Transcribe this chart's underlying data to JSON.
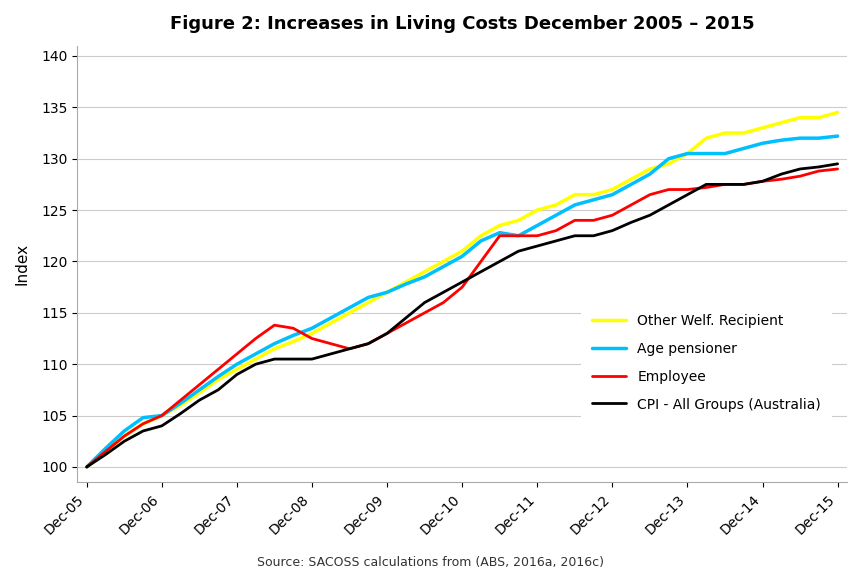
{
  "title": "Figure 2: Increases in Living Costs December 2005 – 2015",
  "ylabel": "Index",
  "source_text": "Source: SACOSS calculations from (ABS, 2016a, 2016c)",
  "x_labels": [
    "Dec-05",
    "Dec-06",
    "Dec-07",
    "Dec-08",
    "Dec-09",
    "Dec-10",
    "Dec-11",
    "Dec-12",
    "Dec-13",
    "Dec-14",
    "Dec-15"
  ],
  "x_tick_positions": [
    0,
    4,
    8,
    12,
    16,
    20,
    24,
    28,
    32,
    36,
    40
  ],
  "ylim": [
    98.5,
    141
  ],
  "yticks": [
    100,
    105,
    110,
    115,
    120,
    125,
    130,
    135,
    140
  ],
  "series": {
    "Other Welf. Recipient": {
      "color": "#FFFF00",
      "linewidth": 2.5,
      "values": [
        100.0,
        101.5,
        103.0,
        104.2,
        105.0,
        106.0,
        107.2,
        108.5,
        109.5,
        110.5,
        111.5,
        112.2,
        113.0,
        114.0,
        115.0,
        116.0,
        117.0,
        118.0,
        119.0,
        120.0,
        121.0,
        122.5,
        123.5,
        124.0,
        125.0,
        125.5,
        126.5,
        126.5,
        127.0,
        128.0,
        129.0,
        129.5,
        130.5,
        132.0,
        132.5,
        132.5,
        133.0,
        133.5,
        134.0,
        134.0,
        134.5
      ]
    },
    "Age pensioner": {
      "color": "#00BFFF",
      "linewidth": 2.5,
      "values": [
        100.0,
        101.8,
        103.5,
        104.8,
        105.0,
        106.2,
        107.5,
        108.8,
        110.0,
        111.0,
        112.0,
        112.8,
        113.5,
        114.5,
        115.5,
        116.5,
        117.0,
        117.8,
        118.5,
        119.5,
        120.5,
        122.0,
        122.8,
        122.5,
        123.5,
        124.5,
        125.5,
        126.0,
        126.5,
        127.5,
        128.5,
        130.0,
        130.5,
        130.5,
        130.5,
        131.0,
        131.5,
        131.8,
        132.0,
        132.0,
        132.2
      ]
    },
    "Employee": {
      "color": "#FF0000",
      "linewidth": 2.0,
      "values": [
        100.0,
        101.5,
        103.0,
        104.2,
        105.0,
        106.5,
        108.0,
        109.5,
        111.0,
        112.5,
        113.8,
        113.5,
        112.5,
        112.0,
        111.5,
        112.0,
        113.0,
        114.0,
        115.0,
        116.0,
        117.5,
        120.0,
        122.5,
        122.5,
        122.5,
        123.0,
        124.0,
        124.0,
        124.5,
        125.5,
        126.5,
        127.0,
        127.0,
        127.2,
        127.5,
        127.5,
        127.8,
        128.0,
        128.3,
        128.8,
        129.0
      ]
    },
    "CPI - All Groups (Australia)": {
      "color": "#000000",
      "linewidth": 2.0,
      "values": [
        100.0,
        101.2,
        102.5,
        103.5,
        104.0,
        105.2,
        106.5,
        107.5,
        109.0,
        110.0,
        110.5,
        110.5,
        110.5,
        111.0,
        111.5,
        112.0,
        113.0,
        114.5,
        116.0,
        117.0,
        118.0,
        119.0,
        120.0,
        121.0,
        121.5,
        122.0,
        122.5,
        122.5,
        123.0,
        123.8,
        124.5,
        125.5,
        126.5,
        127.5,
        127.5,
        127.5,
        127.8,
        128.5,
        129.0,
        129.2,
        129.5
      ]
    }
  },
  "legend_order": [
    "Other Welf. Recipient",
    "Age pensioner",
    "Employee",
    "CPI - All Groups (Australia)"
  ],
  "background_color": "#FFFFFF",
  "plot_bg_color": "#FFFFFF",
  "grid_color": "#CCCCCC",
  "title_fontsize": 13,
  "axis_label_fontsize": 11,
  "tick_fontsize": 10,
  "legend_fontsize": 10
}
